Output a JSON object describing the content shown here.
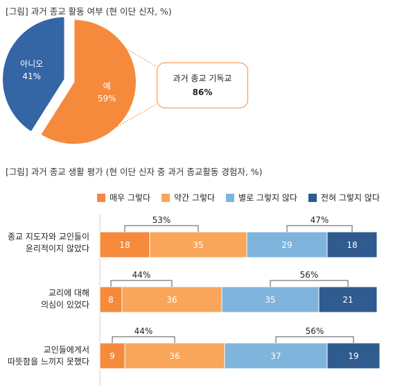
{
  "titles": {
    "pie": "[그림] 과거 종교 활동 여부 (현 이단 신자, %)",
    "bar": "[그림] 과거 종교 생활 평가 (현 이단 신자 중 과거 종교활동 경험자, %)"
  },
  "callout": {
    "label": "과거 종교 기독교",
    "value": "86%"
  },
  "colors": {
    "dark_orange": "#f58a3c",
    "light_orange": "#f9a55a",
    "light_blue": "#7fb4dc",
    "dark_blue": "#2f5b8f",
    "pie_yes": "#f58a3c",
    "pie_no": "#3465a4"
  },
  "chart_data": [
    {
      "type": "pie",
      "slices": [
        {
          "label": "예",
          "value": 59,
          "value_label": "59%"
        },
        {
          "label": "아니오",
          "value": 41,
          "value_label": "41%"
        }
      ]
    },
    {
      "type": "bar",
      "stacked": true,
      "orientation": "horizontal",
      "categories": [
        [
          "종교 지도자와 교인들이",
          "윤리적이지 않았다"
        ],
        [
          "교리에 대해",
          "의심이 있었다"
        ],
        [
          "교인들에게서",
          "따뜻함을 느끼지 못했다"
        ]
      ],
      "series": [
        {
          "name": "매우 그렇다",
          "values": [
            18,
            8,
            9
          ]
        },
        {
          "name": "약간 그렇다",
          "values": [
            35,
            36,
            36
          ]
        },
        {
          "name": "별로 그렇지 않다",
          "values": [
            29,
            35,
            37
          ]
        },
        {
          "name": "전혀 그렇지 않다",
          "values": [
            18,
            21,
            19
          ]
        }
      ],
      "group_totals": {
        "positive": [
          "53%",
          "44%",
          "44%"
        ],
        "negative": [
          "47%",
          "56%",
          "56%"
        ]
      },
      "xlim": [
        0,
        100
      ]
    }
  ]
}
